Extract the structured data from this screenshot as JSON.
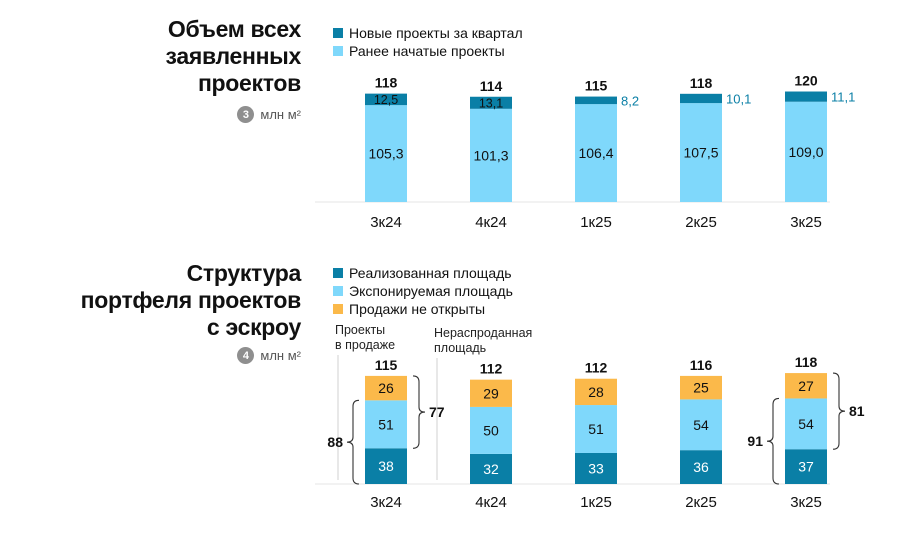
{
  "colors": {
    "realized": "#0a7fa6",
    "exposed": "#7fd8fb",
    "not_open": "#fbb94a",
    "unit_badge": "#8f8f8f"
  },
  "chart_data": [
    {
      "type": "bar",
      "stacked": true,
      "title_lines": [
        "Объем всех",
        "заявленных",
        "проектов"
      ],
      "unit_badge": "3",
      "unit": "млн м²",
      "categories": [
        "3к24",
        "4к24",
        "1к25",
        "2к25",
        "3к25"
      ],
      "series": [
        {
          "name": "Ранее начатые проекты",
          "color": "#7fd8fb",
          "values": [
            105.3,
            101.3,
            106.4,
            107.5,
            109.0
          ],
          "labels": [
            "105,3",
            "101,3",
            "106,4",
            "107,5",
            "109,0"
          ]
        },
        {
          "name": "Новые проекты за квартал",
          "color": "#0a7fa6",
          "values": [
            12.5,
            13.1,
            8.2,
            10.1,
            11.1
          ],
          "labels": [
            "12,5",
            "13,1",
            "8,2",
            "10,1",
            "11,1"
          ]
        }
      ],
      "totals": [
        "118",
        "114",
        "115",
        "118",
        "120"
      ],
      "legend_order": [
        "Новые проекты за квартал",
        "Ранее начатые проекты"
      ],
      "legend_position": "top-left",
      "ylim": [
        0,
        120
      ]
    },
    {
      "type": "bar",
      "stacked": true,
      "title_lines": [
        "Структура",
        "портфеля проектов",
        "с эскроу"
      ],
      "unit_badge": "4",
      "unit": "млн м²",
      "categories": [
        "3к24",
        "4к24",
        "1к25",
        "2к25",
        "3к25"
      ],
      "series": [
        {
          "name": "Реализованная площадь",
          "color": "#0a7fa6",
          "values": [
            38,
            32,
            33,
            36,
            37
          ]
        },
        {
          "name": "Экспонируемая площадь",
          "color": "#7fd8fb",
          "values": [
            51,
            50,
            51,
            54,
            54
          ]
        },
        {
          "name": "Продажи не открыты",
          "color": "#fbb94a",
          "values": [
            26,
            29,
            28,
            25,
            27
          ]
        }
      ],
      "totals": [
        "115",
        "112",
        "112",
        "116",
        "118"
      ],
      "legend_position": "top-left",
      "ylim": [
        0,
        118
      ],
      "annotations": {
        "in_sale_label_lines": [
          "Проекты",
          "в продаже"
        ],
        "unsold_label_lines": [
          "Нераспроданная",
          "площадь"
        ],
        "bracket_3k24_in_sale": "88",
        "bracket_3k24_unsold": "77",
        "bracket_3k25_in_sale": "91",
        "bracket_3k25_unsold": "81"
      }
    }
  ]
}
